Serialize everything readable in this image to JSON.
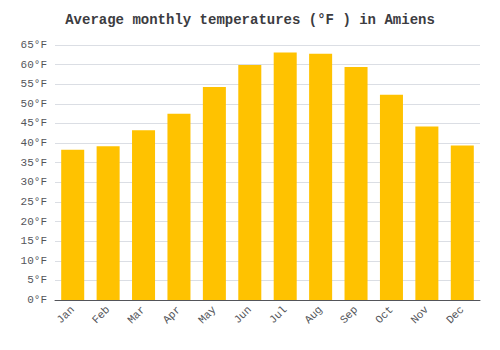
{
  "chart_data": {
    "type": "bar",
    "title": "Average monthly temperatures (°F ) in Amiens",
    "categories": [
      "Jan",
      "Feb",
      "Mar",
      "Apr",
      "May",
      "Jun",
      "Jul",
      "Aug",
      "Sep",
      "Oct",
      "Nov",
      "Dec"
    ],
    "values": [
      38.3,
      39.2,
      43.3,
      47.5,
      54.3,
      59.9,
      63.1,
      62.8,
      59.4,
      52.3,
      44.2,
      39.4
    ],
    "color": "#FFC200",
    "ylim": [
      0,
      65
    ],
    "yticks": [
      {
        "value": 0,
        "label": "0°F"
      },
      {
        "value": 5,
        "label": "5°F"
      },
      {
        "value": 10,
        "label": "10°F"
      },
      {
        "value": 15,
        "label": "15°F"
      },
      {
        "value": 20,
        "label": "20°F"
      },
      {
        "value": 25,
        "label": "25°F"
      },
      {
        "value": 30,
        "label": "30°F"
      },
      {
        "value": 35,
        "label": "35°F"
      },
      {
        "value": 40,
        "label": "40°F"
      },
      {
        "value": 45,
        "label": "45°F"
      },
      {
        "value": 50,
        "label": "50°F"
      },
      {
        "value": 55,
        "label": "55°F"
      },
      {
        "value": 60,
        "label": "60°F"
      },
      {
        "value": 65,
        "label": "65°F"
      }
    ],
    "grid": true
  }
}
